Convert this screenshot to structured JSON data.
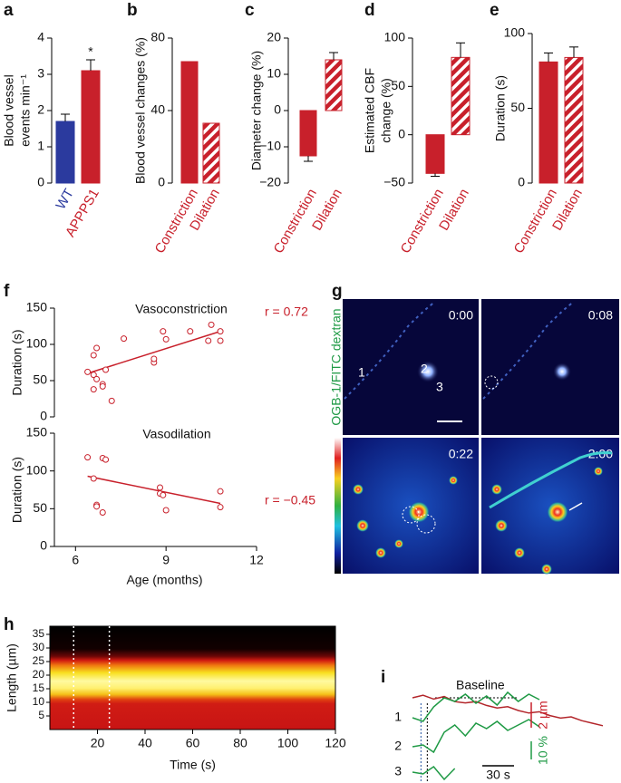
{
  "chart_data": [
    {
      "type": "bar",
      "panel": "a",
      "ylabel": [
        "Blood vessel",
        "events min⁻¹"
      ],
      "categories": [
        "WT",
        "APPPS1"
      ],
      "values": [
        1.7,
        3.1
      ],
      "errors": [
        0.2,
        0.3
      ],
      "colors": [
        "#2b3a9e",
        "#c8202b"
      ],
      "category_colors": [
        "#2b3a9e",
        "#c8202b"
      ],
      "hatched": [
        false,
        false
      ],
      "annotation": "*",
      "ylim": [
        0,
        4
      ],
      "yticks": [
        0,
        1,
        2,
        3,
        4
      ]
    },
    {
      "type": "bar",
      "panel": "b",
      "ylabel": [
        "Blood vessel changes (%)"
      ],
      "categories": [
        "Constriction",
        "Dilation"
      ],
      "values": [
        67,
        33
      ],
      "colors": [
        "#c8202b",
        "#c8202b"
      ],
      "category_colors": [
        "#c8202b",
        "#c8202b"
      ],
      "hatched": [
        false,
        true
      ],
      "ylim": [
        0,
        80
      ],
      "yticks": [
        0,
        40,
        80
      ]
    },
    {
      "type": "bar",
      "panel": "c",
      "ylabel": [
        "Diameter change (%)"
      ],
      "categories": [
        "Constriction",
        "Dilation"
      ],
      "values": [
        -12.5,
        14
      ],
      "errors": [
        1.5,
        2
      ],
      "colors": [
        "#c8202b",
        "#c8202b"
      ],
      "category_colors": [
        "#c8202b",
        "#c8202b"
      ],
      "hatched": [
        false,
        true
      ],
      "ylim": [
        -20,
        20
      ],
      "yticks": [
        {
          "value": -20,
          "label": "−20"
        },
        {
          "value": -10,
          "label": "−10"
        },
        0,
        10,
        20
      ]
    },
    {
      "type": "bar",
      "panel": "d",
      "ylabel": [
        "Estimated CBF",
        "change (%)"
      ],
      "categories": [
        "Constriction",
        "Dilation"
      ],
      "values": [
        -40,
        80
      ],
      "errors": [
        3,
        15
      ],
      "colors": [
        "#c8202b",
        "#c8202b"
      ],
      "category_colors": [
        "#c8202b",
        "#c8202b"
      ],
      "hatched": [
        false,
        true
      ],
      "ylim": [
        -50,
        100
      ],
      "yticks": [
        {
          "value": -50,
          "label": "−50"
        },
        0,
        50,
        100
      ]
    },
    {
      "type": "bar",
      "panel": "e",
      "ylabel": [
        "Duration (s)"
      ],
      "categories": [
        "Constriction",
        "Dilation"
      ],
      "values": [
        81,
        84
      ],
      "errors": [
        6,
        7
      ],
      "colors": [
        "#c8202b",
        "#c8202b"
      ],
      "category_colors": [
        "#c8202b",
        "#c8202b"
      ],
      "hatched": [
        false,
        true
      ],
      "ylim": [
        0,
        100
      ],
      "yticks": [
        0,
        50,
        100
      ]
    },
    {
      "type": "scatter",
      "panel": "f",
      "title": "Vasoconstriction",
      "ylabel": "Duration (s)",
      "x": [
        6.4,
        6.6,
        6.6,
        6.7,
        6.7,
        6.6,
        6.9,
        7.0,
        6.9,
        7.2,
        7.6,
        8.6,
        8.6,
        8.9,
        9.0,
        9.8,
        10.5,
        10.8,
        10.8,
        10.4
      ],
      "y": [
        62,
        58,
        85,
        95,
        52,
        38,
        45,
        65,
        42,
        22,
        108,
        75,
        80,
        118,
        107,
        118,
        127,
        118,
        105,
        105
      ],
      "fit": {
        "x": [
          6.4,
          10.8
        ],
        "y": [
          60,
          118
        ]
      },
      "annotation": "r = 0.72",
      "color": "#c8202b",
      "xlim": [
        5.3,
        12
      ],
      "ylim": [
        0,
        150
      ],
      "yticks": [
        0,
        50,
        100,
        150
      ]
    },
    {
      "type": "scatter",
      "title": "Vasodilation",
      "ylabel": "Duration (s)",
      "xlabel": "Age (months)",
      "x": [
        6.4,
        6.6,
        6.7,
        6.7,
        6.9,
        7.0,
        6.9,
        8.8,
        8.8,
        8.9,
        9.0,
        10.8,
        10.8
      ],
      "y": [
        118,
        90,
        55,
        53,
        117,
        115,
        45,
        78,
        70,
        68,
        48,
        73,
        52
      ],
      "fit": {
        "x": [
          6.4,
          10.8
        ],
        "y": [
          93,
          57
        ]
      },
      "annotation": "r = −0.45",
      "color": "#c8202b",
      "xlim": [
        5.3,
        12
      ],
      "xticks": [
        6,
        9,
        12
      ],
      "ylim": [
        0,
        150
      ],
      "yticks": [
        0,
        50,
        100,
        150
      ]
    },
    {
      "type": "heatmap",
      "panel": "h",
      "xlabel": "Time (s)",
      "ylabel": "Length (µm)",
      "markers": [
        10,
        25
      ],
      "xlim": [
        0,
        120
      ],
      "xticks": [
        20,
        40,
        60,
        80,
        100,
        120
      ],
      "ylim": [
        0,
        38
      ],
      "yticks": [
        5,
        10,
        15,
        20,
        25,
        30,
        35
      ]
    },
    {
      "type": "line",
      "panel": "i",
      "x": [
        0,
        10,
        20,
        30,
        40,
        50,
        60,
        70,
        80,
        90,
        100,
        110,
        120,
        130,
        140,
        150,
        160,
        170,
        180
      ],
      "series": [
        {
          "color": "#b3262b",
          "values": [
            0,
            0.2,
            -0.1,
            0.1,
            -0.3,
            -0.4,
            -0.3,
            -0.6,
            -0.8,
            -0.7,
            -1.0,
            -1.2,
            -1.1,
            -1.4,
            -1.6,
            -1.5,
            -1.8,
            -2.0,
            -2.2
          ]
        },
        {
          "name": "1",
          "color": "#1f9a45",
          "values": [
            0,
            -2,
            6,
            11,
            9,
            13,
            8,
            12,
            7,
            14,
            9,
            13,
            10,
            null,
            null,
            null,
            null,
            null,
            null
          ]
        },
        {
          "name": "2",
          "color": "#1f9a45",
          "values": [
            0,
            1,
            -3,
            8,
            12,
            6,
            13,
            10,
            14,
            9,
            12,
            15,
            11,
            null,
            null,
            null,
            null,
            null,
            null
          ]
        },
        {
          "name": "3",
          "color": "#1f9a45",
          "values": [
            0,
            -1,
            3,
            -4,
            2,
            null,
            null,
            null,
            null,
            null,
            null,
            null,
            null,
            null,
            null,
            null,
            null,
            null,
            null
          ]
        }
      ],
      "markers": [
        8,
        14
      ],
      "baseline_label": "Baseline",
      "scalebars": [
        {
          "value": 2,
          "label": "2 µm",
          "color": "#c8202b"
        },
        {
          "value": 10,
          "label": "10 %",
          "color": "#1f9a45"
        },
        {
          "value": 30,
          "label": "30 s",
          "color": "#000000"
        }
      ]
    }
  ],
  "image_panel": {
    "panel": "g",
    "ylabel": "OGB-1/FITC dextran",
    "timestamps": [
      "0:00",
      "0:08",
      "0:22",
      "2:00"
    ],
    "cell_labels": [
      "1",
      "2",
      "3"
    ]
  }
}
